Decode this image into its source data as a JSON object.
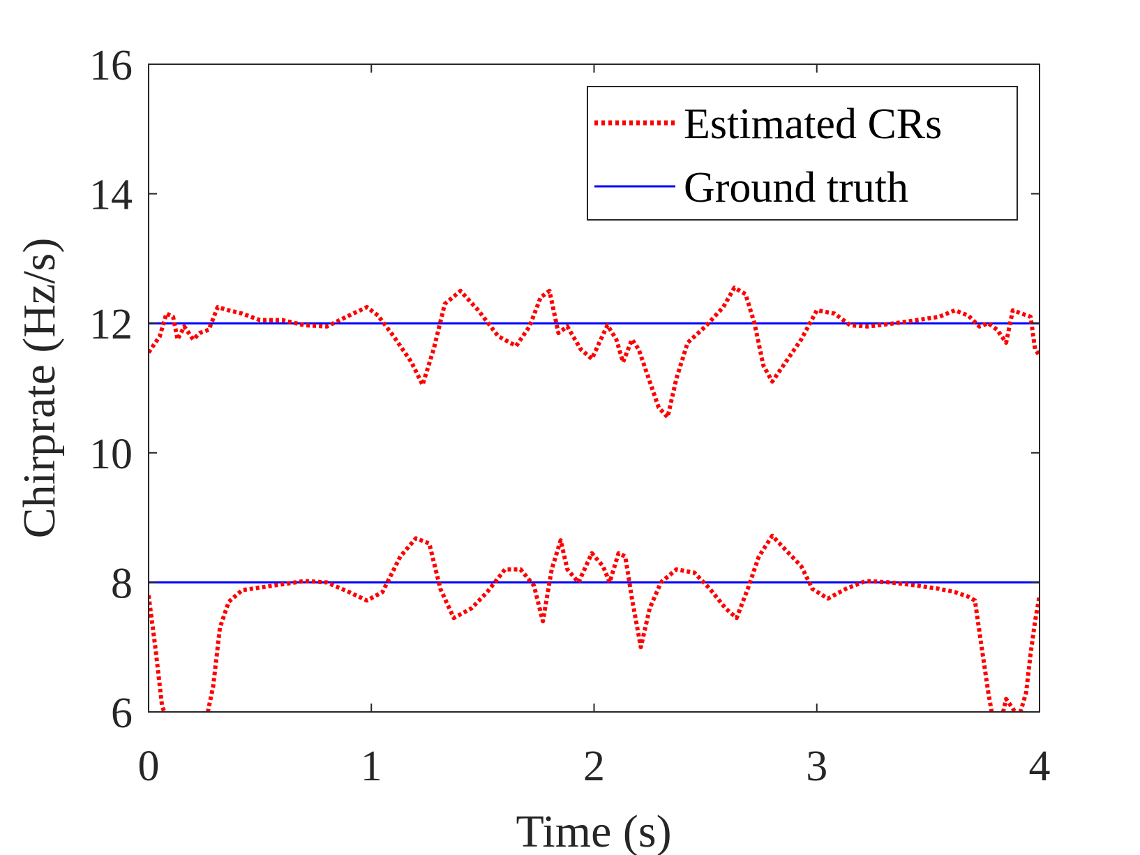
{
  "chart_data": {
    "type": "line",
    "title": "",
    "xlabel": "Time (s)",
    "ylabel": "Chirprate (Hz/s)",
    "xlim": [
      0,
      4
    ],
    "ylim": [
      6,
      16
    ],
    "xticks": [
      0,
      1,
      2,
      3,
      4
    ],
    "yticks": [
      6,
      8,
      10,
      12,
      14,
      16
    ],
    "xtick_labels": [
      "0",
      "1",
      "2",
      "3",
      "4"
    ],
    "ytick_labels": [
      "6",
      "8",
      "10",
      "12",
      14,
      "16"
    ],
    "grid": false,
    "legend_position": "top-right",
    "series": [
      {
        "name": "Estimated CRs",
        "style": "dotted",
        "color": "#ff0000",
        "segments": [
          [
            [
              0.0,
              11.55
            ],
            [
              0.05,
              11.8
            ],
            [
              0.08,
              12.15
            ],
            [
              0.11,
              12.1
            ],
            [
              0.13,
              11.75
            ],
            [
              0.16,
              11.95
            ],
            [
              0.2,
              11.75
            ],
            [
              0.23,
              11.85
            ],
            [
              0.27,
              11.9
            ],
            [
              0.31,
              12.25
            ],
            [
              0.36,
              12.2
            ],
            [
              0.42,
              12.15
            ],
            [
              0.5,
              12.05
            ],
            [
              0.6,
              12.05
            ],
            [
              0.7,
              11.97
            ],
            [
              0.8,
              11.95
            ],
            [
              0.9,
              12.12
            ],
            [
              0.98,
              12.25
            ],
            [
              1.03,
              12.12
            ],
            [
              1.1,
              11.8
            ],
            [
              1.18,
              11.4
            ],
            [
              1.23,
              11.05
            ],
            [
              1.28,
              11.6
            ],
            [
              1.33,
              12.3
            ],
            [
              1.4,
              12.5
            ],
            [
              1.48,
              12.2
            ],
            [
              1.57,
              11.8
            ],
            [
              1.65,
              11.65
            ],
            [
              1.71,
              11.95
            ],
            [
              1.76,
              12.4
            ],
            [
              1.8,
              12.5
            ],
            [
              1.84,
              11.85
            ],
            [
              1.88,
              11.95
            ],
            [
              1.94,
              11.6
            ],
            [
              1.99,
              11.45
            ],
            [
              2.03,
              11.75
            ],
            [
              2.06,
              11.97
            ],
            [
              2.1,
              11.75
            ],
            [
              2.13,
              11.4
            ],
            [
              2.17,
              11.75
            ],
            [
              2.2,
              11.6
            ],
            [
              2.25,
              11.1
            ],
            [
              2.29,
              10.7
            ],
            [
              2.33,
              10.55
            ],
            [
              2.37,
              11.15
            ],
            [
              2.42,
              11.7
            ],
            [
              2.5,
              11.95
            ],
            [
              2.58,
              12.25
            ],
            [
              2.63,
              12.55
            ],
            [
              2.68,
              12.45
            ],
            [
              2.72,
              12.0
            ],
            [
              2.76,
              11.35
            ],
            [
              2.8,
              11.1
            ],
            [
              2.86,
              11.4
            ],
            [
              2.93,
              11.75
            ],
            [
              3.0,
              12.2
            ],
            [
              3.08,
              12.15
            ],
            [
              3.15,
              11.97
            ],
            [
              3.23,
              11.95
            ],
            [
              3.35,
              12.0
            ],
            [
              3.45,
              12.05
            ],
            [
              3.55,
              12.1
            ],
            [
              3.62,
              12.2
            ],
            [
              3.68,
              12.12
            ],
            [
              3.73,
              11.95
            ],
            [
              3.77,
              12.0
            ],
            [
              3.81,
              11.9
            ],
            [
              3.85,
              11.7
            ],
            [
              3.88,
              12.2
            ],
            [
              3.92,
              12.15
            ],
            [
              3.96,
              12.1
            ],
            [
              3.98,
              11.6
            ],
            [
              4.0,
              11.5
            ]
          ],
          [
            [
              0.0,
              7.8
            ],
            [
              0.03,
              7.0
            ],
            [
              0.06,
              6.1
            ],
            [
              0.08,
              5.9
            ]
          ],
          [
            [
              0.26,
              5.9
            ],
            [
              0.29,
              6.4
            ],
            [
              0.32,
              7.3
            ],
            [
              0.36,
              7.7
            ],
            [
              0.42,
              7.88
            ],
            [
              0.5,
              7.92
            ],
            [
              0.6,
              7.97
            ],
            [
              0.7,
              8.02
            ],
            [
              0.8,
              8.0
            ],
            [
              0.9,
              7.85
            ],
            [
              0.98,
              7.72
            ],
            [
              1.05,
              7.85
            ],
            [
              1.13,
              8.4
            ],
            [
              1.2,
              8.68
            ],
            [
              1.26,
              8.6
            ],
            [
              1.31,
              7.9
            ],
            [
              1.37,
              7.45
            ],
            [
              1.45,
              7.6
            ],
            [
              1.52,
              7.85
            ],
            [
              1.6,
              8.2
            ],
            [
              1.67,
              8.2
            ],
            [
              1.73,
              7.95
            ],
            [
              1.77,
              7.4
            ],
            [
              1.81,
              8.2
            ],
            [
              1.85,
              8.65
            ],
            [
              1.88,
              8.2
            ],
            [
              1.93,
              8.0
            ],
            [
              1.99,
              8.45
            ],
            [
              2.04,
              8.25
            ],
            [
              2.07,
              8.0
            ],
            [
              2.11,
              8.45
            ],
            [
              2.14,
              8.4
            ],
            [
              2.17,
              7.75
            ],
            [
              2.21,
              7.0
            ],
            [
              2.25,
              7.6
            ],
            [
              2.3,
              8.0
            ],
            [
              2.37,
              8.2
            ],
            [
              2.45,
              8.15
            ],
            [
              2.52,
              7.9
            ],
            [
              2.59,
              7.6
            ],
            [
              2.64,
              7.45
            ],
            [
              2.69,
              7.9
            ],
            [
              2.74,
              8.4
            ],
            [
              2.8,
              8.72
            ],
            [
              2.86,
              8.5
            ],
            [
              2.93,
              8.25
            ],
            [
              2.98,
              7.9
            ],
            [
              3.05,
              7.75
            ],
            [
              3.13,
              7.9
            ],
            [
              3.22,
              8.02
            ],
            [
              3.33,
              8.0
            ],
            [
              3.45,
              7.95
            ],
            [
              3.55,
              7.9
            ],
            [
              3.62,
              7.85
            ],
            [
              3.68,
              7.78
            ],
            [
              3.71,
              7.72
            ],
            [
              3.74,
              7.0
            ],
            [
              3.77,
              6.3
            ],
            [
              3.79,
              5.9
            ]
          ],
          [
            [
              3.83,
              5.9
            ],
            [
              3.85,
              6.2
            ],
            [
              3.87,
              6.1
            ],
            [
              3.89,
              6.0
            ],
            [
              3.91,
              5.95
            ],
            [
              3.94,
              6.3
            ],
            [
              3.96,
              6.9
            ],
            [
              3.98,
              7.4
            ],
            [
              4.0,
              7.8
            ]
          ]
        ]
      },
      {
        "name": "Ground truth",
        "style": "solid",
        "color": "#0000ff",
        "lines": [
          {
            "x": [
              0,
              4
            ],
            "y": [
              12,
              12
            ]
          },
          {
            "x": [
              0,
              4
            ],
            "y": [
              8,
              8
            ]
          }
        ]
      }
    ]
  }
}
